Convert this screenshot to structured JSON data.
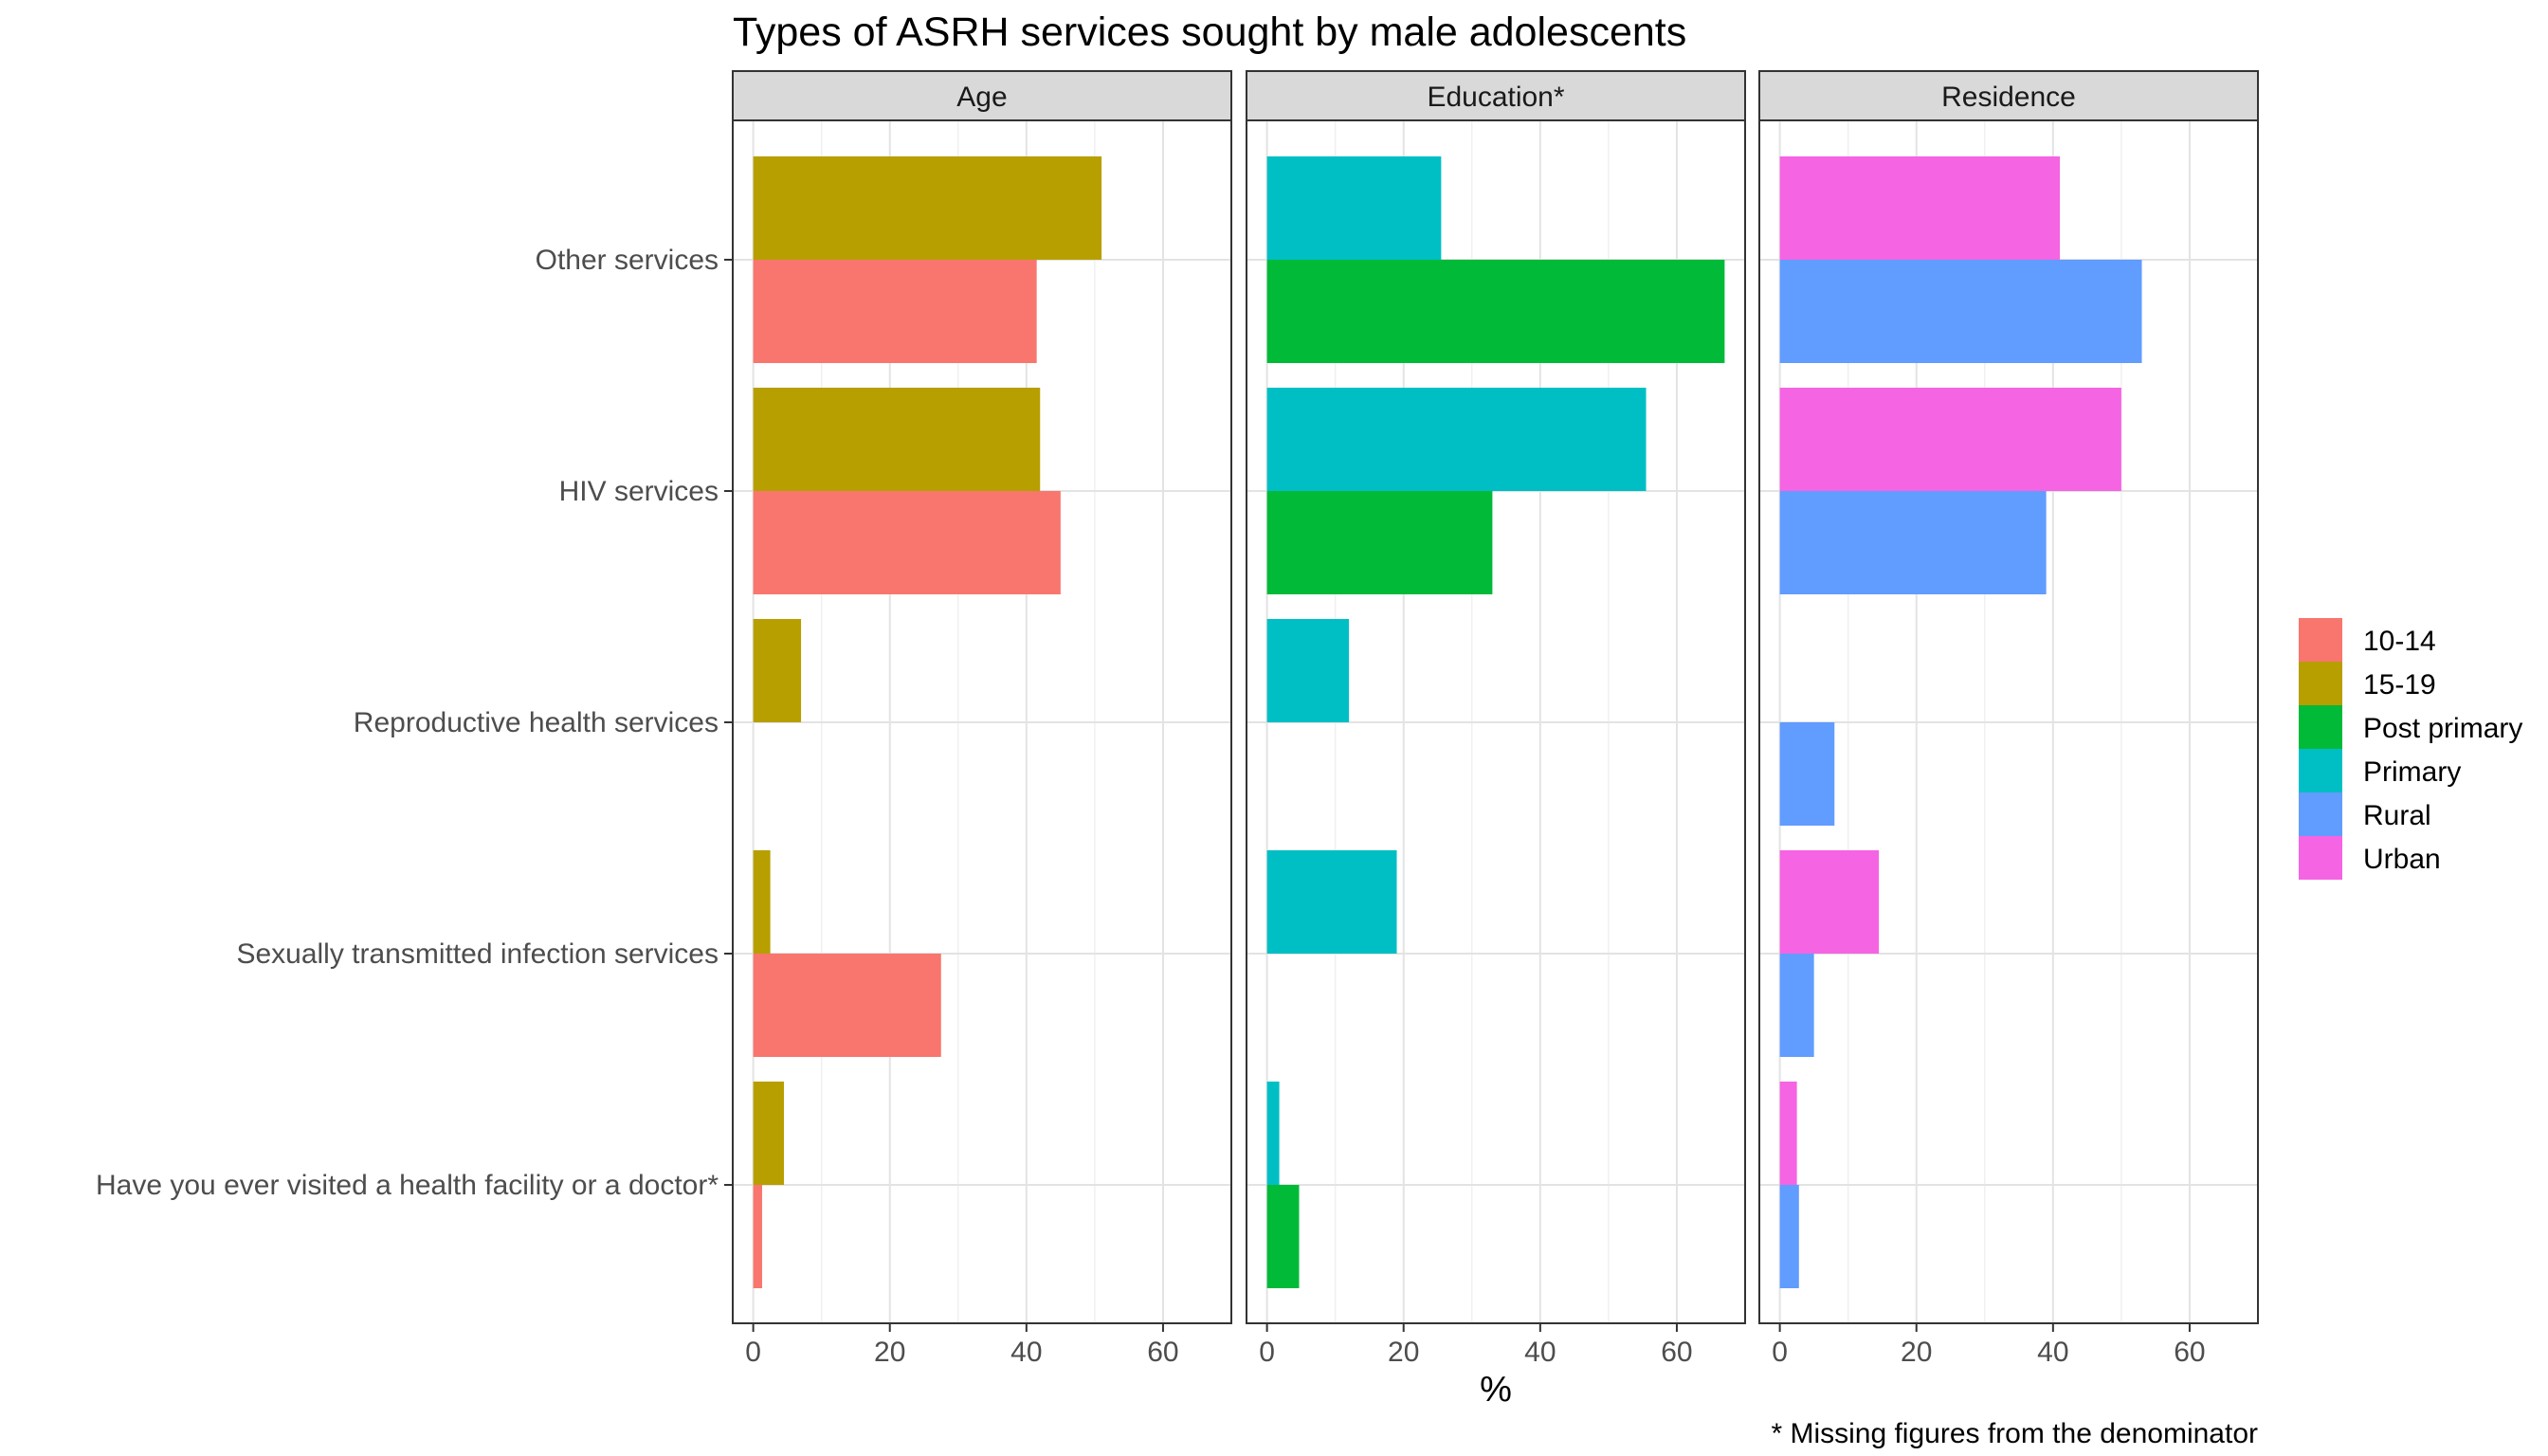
{
  "chart_data": {
    "type": "bar",
    "orientation": "horizontal",
    "title": "Types of ASRH services sought by male adolescents",
    "xlabel": "%",
    "caption": "* Missing figures from the denominator",
    "xlim": [
      -3,
      70
    ],
    "xticks": [
      0,
      20,
      40,
      60
    ],
    "grid": true,
    "legend_position": "right",
    "categories": [
      "Other services",
      "HIV services",
      "Reproductive health services",
      "Sexually transmitted infection services",
      "Have you ever visited a health facility or a doctor*"
    ],
    "legend": [
      {
        "name": "10-14",
        "color": "#F8766D"
      },
      {
        "name": "15-19",
        "color": "#B79F00"
      },
      {
        "name": "Post primary",
        "color": "#00BA38"
      },
      {
        "name": "Primary",
        "color": "#00BFC4"
      },
      {
        "name": "Rural",
        "color": "#619CFF"
      },
      {
        "name": "Urban",
        "color": "#F564E3"
      }
    ],
    "panels": [
      {
        "strip": "Age",
        "series": [
          {
            "name": "15-19",
            "values": [
              51,
              42,
              7,
              2.5,
              4.5
            ]
          },
          {
            "name": "10-14",
            "values": [
              41.5,
              45,
              0,
              27.5,
              1.3
            ]
          }
        ]
      },
      {
        "strip": "Education*",
        "series": [
          {
            "name": "Primary",
            "values": [
              25.5,
              55.5,
              12,
              19,
              1.8
            ]
          },
          {
            "name": "Post primary",
            "values": [
              67,
              33,
              0,
              0,
              4.7
            ]
          }
        ]
      },
      {
        "strip": "Residence",
        "series": [
          {
            "name": "Urban",
            "values": [
              41,
              50,
              0,
              14.5,
              2.5
            ]
          },
          {
            "name": "Rural",
            "values": [
              53,
              39,
              8,
              5,
              2.8
            ]
          }
        ]
      }
    ]
  }
}
